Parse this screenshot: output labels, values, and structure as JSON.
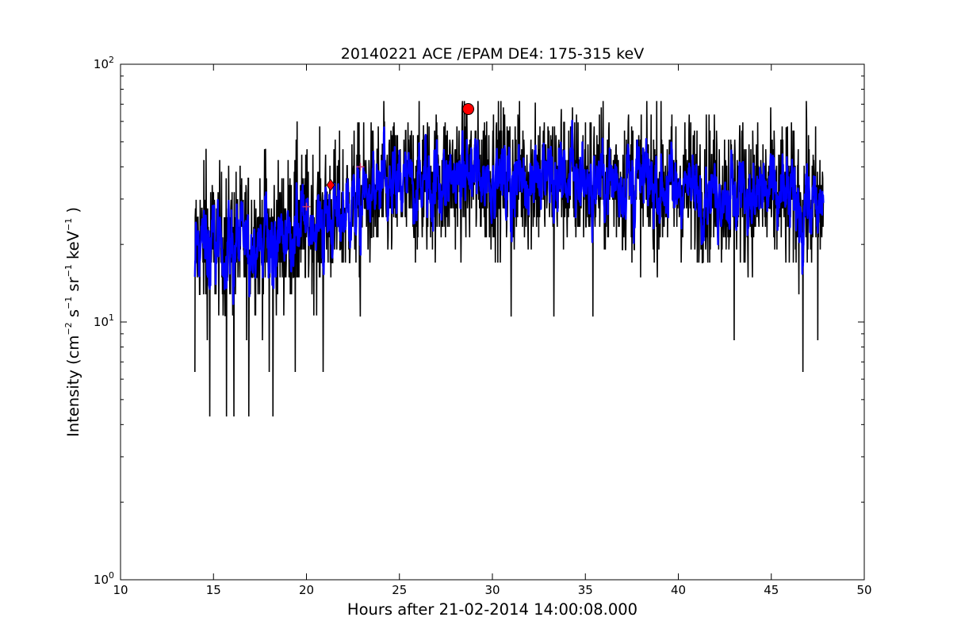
{
  "chart_data": {
    "type": "line",
    "title": "20140221 ACE /EPAM DE4: 175-315 keV",
    "xlabel": "Hours after 21-02-2014 14:00:08.000",
    "ylabel": {
      "prefix": "Intensity (cm",
      "cm_exp": "−2",
      "s": " s",
      "s_exp": "−1",
      "sr": " sr",
      "sr_exp": "−1",
      "kev": " keV",
      "kev_exp": "−1",
      "suffix": " )"
    },
    "xlim": [
      10,
      50
    ],
    "ylim": [
      1,
      100
    ],
    "yscale": "log",
    "grid": false,
    "x_ticks": [
      "10",
      "15",
      "20",
      "25",
      "30",
      "35",
      "40",
      "45",
      "50"
    ],
    "y_ticks": [
      {
        "base": "10",
        "exp": "0"
      },
      {
        "base": "10",
        "exp": "1"
      },
      {
        "base": "10",
        "exp": "2"
      }
    ],
    "colors": {
      "raw": "#000000",
      "smoothed": "#0000ff",
      "marker": "#ff0000",
      "plus": "#cc3366"
    },
    "series": [
      {
        "style": "raw",
        "color": "#000000",
        "x_range": [
          14.0,
          47.8
        ],
        "baseline": [
          [
            14.0,
            20.0
          ],
          [
            16.0,
            20.5
          ],
          [
            18.0,
            21.0
          ],
          [
            20.0,
            23.5
          ],
          [
            21.5,
            26.0
          ],
          [
            23.0,
            30.0
          ],
          [
            25.0,
            33.0
          ],
          [
            27.0,
            35.0
          ],
          [
            29.0,
            37.0
          ],
          [
            31.0,
            36.5
          ],
          [
            34.0,
            36.0
          ],
          [
            38.0,
            34.5
          ],
          [
            42.0,
            32.5
          ],
          [
            45.0,
            31.0
          ],
          [
            47.8,
            28.0
          ]
        ],
        "spikes_high": [
          [
            14.6,
            47
          ],
          [
            15.7,
            45
          ],
          [
            17.8,
            47
          ],
          [
            19.5,
            60
          ],
          [
            22.9,
            62
          ],
          [
            24.2,
            60
          ],
          [
            26.3,
            58
          ],
          [
            28.6,
            64
          ],
          [
            29.7,
            60
          ],
          [
            32.3,
            71
          ],
          [
            33.7,
            67
          ],
          [
            37.3,
            60
          ],
          [
            43.3,
            58
          ],
          [
            45.8,
            57
          ],
          [
            46.9,
            60
          ]
        ],
        "spikes_low": [
          [
            14.0,
            6.4
          ],
          [
            14.8,
            4.3
          ],
          [
            15.7,
            4.3
          ],
          [
            16.1,
            4.3
          ],
          [
            16.9,
            4.3
          ],
          [
            18.0,
            6.4
          ],
          [
            18.2,
            4.3
          ],
          [
            19.4,
            6.4
          ],
          [
            20.9,
            6.4
          ],
          [
            22.9,
            10.5
          ],
          [
            31.0,
            10.5
          ],
          [
            33.3,
            10.5
          ],
          [
            35.4,
            10.5
          ],
          [
            43.0,
            8.5
          ],
          [
            46.7,
            6.4
          ],
          [
            47.5,
            8.5
          ]
        ]
      },
      {
        "style": "smoothed",
        "color": "#0000ff",
        "x_range": [
          14.0,
          47.8
        ]
      }
    ],
    "markers": [
      {
        "shape": "circle",
        "x": 28.7,
        "y": 67
      },
      {
        "shape": "diamond",
        "x": 21.3,
        "y": 34
      },
      {
        "shape": "plus",
        "x": 20.0,
        "y": 28
      },
      {
        "shape": "plus",
        "x": 22.9,
        "y": 40
      }
    ]
  }
}
